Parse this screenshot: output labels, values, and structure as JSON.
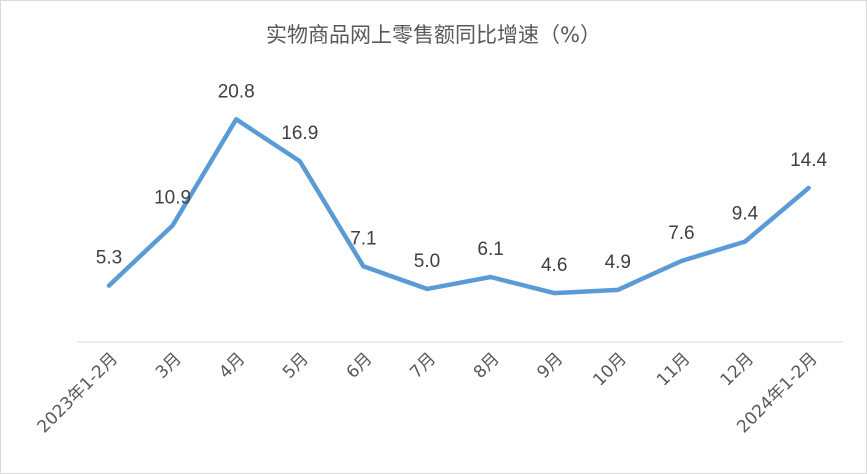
{
  "chart_data": {
    "type": "line",
    "title": "实物商品网上零售额同比增速（%）",
    "xlabel": "",
    "ylabel": "",
    "categories": [
      "2023年1-2月",
      "3月",
      "4月",
      "5月",
      "6月",
      "7月",
      "8月",
      "9月",
      "10月",
      "11月",
      "12月",
      "2024年1-2月"
    ],
    "series": [
      {
        "values": [
          5.3,
          10.9,
          20.8,
          16.9,
          7.1,
          5.0,
          6.1,
          4.6,
          4.9,
          7.6,
          9.4,
          14.4
        ],
        "labels": [
          "5.3",
          "10.9",
          "20.8",
          "16.9",
          "7.1",
          "5.0",
          "6.1",
          "4.6",
          "4.9",
          "7.6",
          "9.4",
          "14.4"
        ]
      }
    ],
    "line_color": "#5b9bd5",
    "grid": false,
    "legend": "none"
  }
}
